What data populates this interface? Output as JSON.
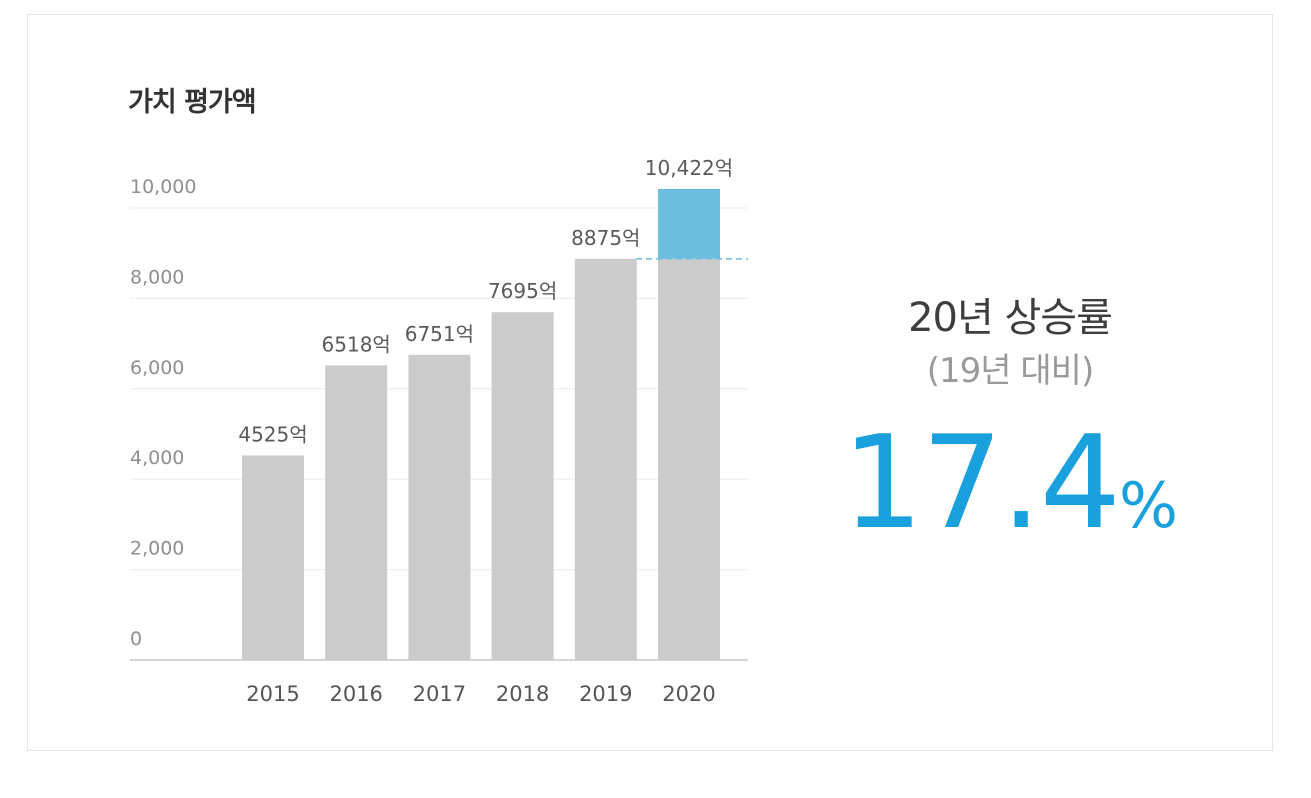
{
  "chart_data": {
    "type": "bar",
    "title": "가치 평가액",
    "categories": [
      "2015",
      "2016",
      "2017",
      "2018",
      "2019",
      "2020"
    ],
    "values": [
      4525,
      6518,
      6751,
      7695,
      8875,
      10422
    ],
    "data_labels": [
      "4525억",
      "6518억",
      "6751억",
      "7695억",
      "8875억",
      "10,422억"
    ],
    "y_ticks": [
      0,
      2000,
      4000,
      6000,
      8000,
      10000
    ],
    "y_tick_labels": [
      "0",
      "2,000",
      "4,000",
      "6,000",
      "8,000",
      "10,000"
    ],
    "ylim": [
      0,
      10000
    ],
    "grid": true,
    "highlight": {
      "category": "2020",
      "baseline_value": 8875
    },
    "colors": {
      "bar": "#cbcbcc",
      "highlight": "#6cbfdf",
      "reference_line": "#6cbfdf",
      "grid": "#ececec",
      "axis": "#c8c8c8"
    }
  },
  "summary": {
    "headline": "20년 상승률",
    "subline": "(19년 대비)",
    "value": "17.4",
    "unit": "%",
    "value_color": "#1aa0dd"
  }
}
